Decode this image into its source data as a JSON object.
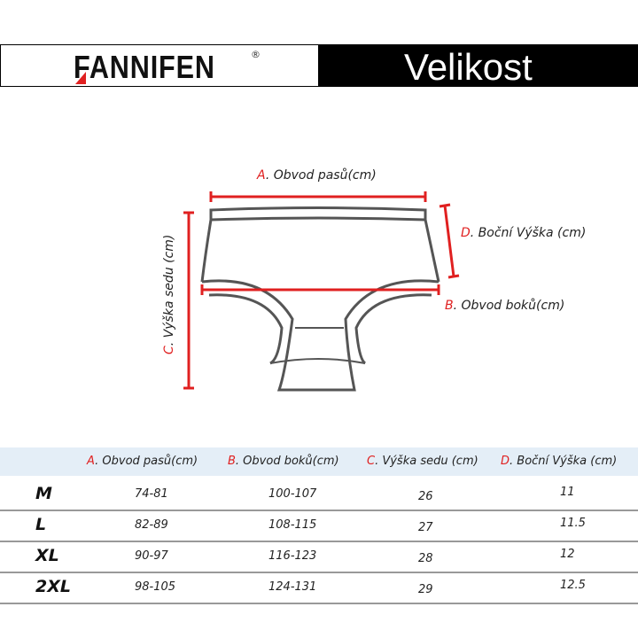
{
  "header": {
    "brand": "FANNIFEN",
    "registered": "®",
    "title": "Velikost"
  },
  "colors": {
    "accent": "#e02020",
    "header_band": "#e4eef7"
  },
  "diagram": {
    "a": {
      "letter": "A",
      "text": ". Obvod pasů(cm)"
    },
    "b": {
      "letter": "B",
      "text": ".  Obvod boků(cm)"
    },
    "c": {
      "letter": "C",
      "text": ". Výška sedu (cm)"
    },
    "d": {
      "letter": "D",
      "text": ". Boční Výška (cm)"
    }
  },
  "table": {
    "columns": [
      {
        "letter": "A",
        "text": ". Obvod pasů(cm)"
      },
      {
        "letter": "B",
        "text": ".  Obvod boků(cm)"
      },
      {
        "letter": "C",
        "text": ". Výška sedu (cm)"
      },
      {
        "letter": "D",
        "text": ". Boční Výška (cm)"
      }
    ],
    "rows": [
      {
        "size": "M",
        "a": "74-81",
        "b": "100-107",
        "c": "26",
        "d": "11"
      },
      {
        "size": "L",
        "a": "82-89",
        "b": "108-115",
        "c": "27",
        "d": "11.5"
      },
      {
        "size": "XL",
        "a": "90-97",
        "b": "116-123",
        "c": "28",
        "d": "12"
      },
      {
        "size": "2XL",
        "a": "98-105",
        "b": "124-131",
        "c": "29",
        "d": "12.5"
      }
    ]
  }
}
